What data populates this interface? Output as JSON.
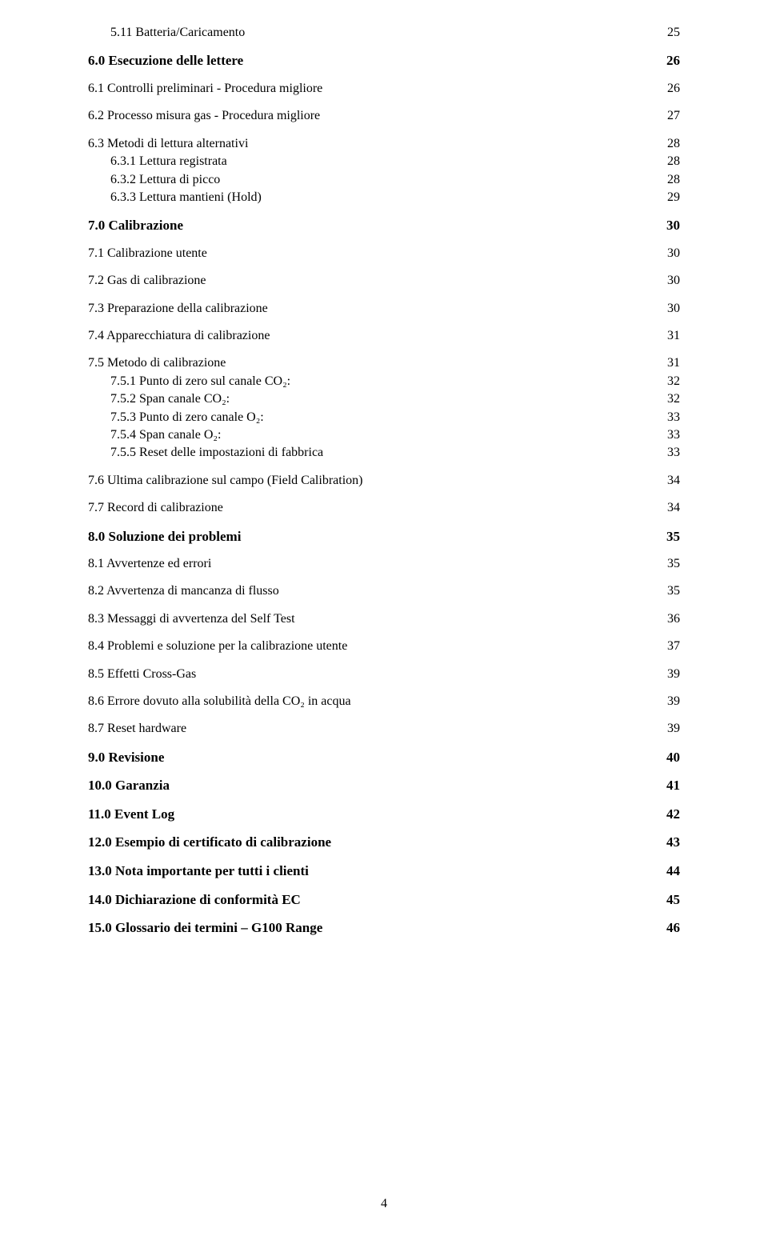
{
  "page_number": "4",
  "text_color": "#000000",
  "background_color": "#ffffff",
  "font_family": "Times New Roman",
  "base_font_size_pt": 12,
  "toc": [
    {
      "level": 2,
      "label": "5.11 Batteria/Caricamento",
      "page": "25",
      "gap_after": "md",
      "font": 16
    },
    {
      "level": 0,
      "label": "6.0  Esecuzione delle lettere",
      "page": "26",
      "gap_after": "md",
      "font": 17
    },
    {
      "level": 1,
      "label": "6.1  Controlli preliminari  -  Procedura migliore",
      "page": "26",
      "gap_after": "md",
      "font": 16
    },
    {
      "level": 1,
      "label": "6.2  Processo misura gas  -  Procedura migliore",
      "page": "27",
      "gap_after": "md",
      "font": 16
    },
    {
      "level": 1,
      "label": "6.3  Metodi di lettura alternativi",
      "page": "28",
      "gap_after": "sm",
      "font": 16
    },
    {
      "level": 2,
      "label": "6.3.1 Lettura registrata",
      "page": "28",
      "gap_after": "sm",
      "font": 16
    },
    {
      "level": 2,
      "label": "6.3.2 Lettura di picco",
      "page": "28",
      "gap_after": "sm",
      "font": 16
    },
    {
      "level": 2,
      "label": "6.3.3 Lettura mantieni (Hold)",
      "page": "29",
      "gap_after": "md",
      "font": 16
    },
    {
      "level": 0,
      "label": "7.0 Calibrazione",
      "page": "30",
      "gap_after": "md",
      "font": 17
    },
    {
      "level": 1,
      "label": "7.1 Calibrazione utente",
      "page": "30",
      "gap_after": "md",
      "font": 16
    },
    {
      "level": 1,
      "label": "7.2 Gas di calibrazione",
      "page": "30",
      "gap_after": "md",
      "font": 16
    },
    {
      "level": 1,
      "label": "7.3 Preparazione della calibrazione",
      "page": "30",
      "gap_after": "md",
      "font": 16
    },
    {
      "level": 1,
      "label": "7.4 Apparecchiatura di calibrazione",
      "page": "31",
      "gap_after": "md",
      "font": 16
    },
    {
      "level": 1,
      "label": "7.5 Metodo di calibrazione",
      "page": "31",
      "gap_after": "sm",
      "font": 16
    },
    {
      "level": 2,
      "label": "7.5.1 Punto di zero sul canale CO₂:",
      "page": "32",
      "gap_after": "sm",
      "font": 16
    },
    {
      "level": 2,
      "label": "7.5.2 Span canale CO₂:",
      "page": "32",
      "gap_after": "sm",
      "font": 16
    },
    {
      "level": 2,
      "label": "7.5.3 Punto di zero canale O₂:",
      "page": "33",
      "gap_after": "sm",
      "font": 16
    },
    {
      "level": 2,
      "label": "7.5.4 Span canale O₂:",
      "page": "33",
      "gap_after": "sm",
      "font": 16
    },
    {
      "level": 2,
      "label": "7.5.5 Reset delle impostazioni di fabbrica",
      "page": "33",
      "gap_after": "md",
      "font": 16
    },
    {
      "level": 1,
      "label": "7.6 Ultima calibrazione sul campo (Field Calibration)",
      "page": "34",
      "gap_after": "md",
      "font": 16
    },
    {
      "level": 1,
      "label": "7.7 Record di calibrazione",
      "page": "34",
      "gap_after": "md",
      "font": 16
    },
    {
      "level": 0,
      "label": "8.0 Soluzione dei problemi",
      "page": "35",
      "gap_after": "md",
      "font": 17
    },
    {
      "level": 1,
      "label": "8.1 Avvertenze ed errori",
      "page": "35",
      "gap_after": "md",
      "font": 16
    },
    {
      "level": 1,
      "label": "8.2 Avvertenza di mancanza di flusso",
      "page": "35",
      "gap_after": "md",
      "font": 16
    },
    {
      "level": 1,
      "label": "8.3 Messaggi di avvertenza del Self Test",
      "page": "36",
      "gap_after": "md",
      "font": 16
    },
    {
      "level": 1,
      "label": "8.4 Problemi e soluzione per la calibrazione utente",
      "page": "37",
      "gap_after": "md",
      "font": 16
    },
    {
      "level": 1,
      "label": "8.5 Effetti Cross-Gas",
      "page": "39",
      "gap_after": "md",
      "font": 16
    },
    {
      "level": 1,
      "label": "8.6 Errore dovuto alla solubilità della CO₂ in acqua",
      "page": "39",
      "gap_after": "md",
      "font": 16
    },
    {
      "level": 1,
      "label": "8.7 Reset hardware",
      "page": "39",
      "gap_after": "md",
      "font": 16
    },
    {
      "level": 0,
      "label": "9.0 Revisione",
      "page": "40",
      "gap_after": "md",
      "font": 17
    },
    {
      "level": 0,
      "label": "10.0 Garanzia",
      "page": "41",
      "gap_after": "md",
      "font": 17
    },
    {
      "level": 0,
      "label": "11.0 Event Log",
      "page": "42",
      "gap_after": "md",
      "font": 17
    },
    {
      "level": 0,
      "label": "12.0 Esempio di certificato di calibrazione",
      "page": "43",
      "gap_after": "md",
      "font": 17
    },
    {
      "level": 0,
      "label": "13.0 Nota importante per tutti i clienti",
      "page": "44",
      "gap_after": "md",
      "font": 17
    },
    {
      "level": 0,
      "label": "14.0 Dichiarazione di conformità EC",
      "page": "45",
      "gap_after": "md",
      "font": 17
    },
    {
      "level": 0,
      "label": "15.0 Glossario dei termini – G100 Range",
      "page": "46",
      "gap_after": "md",
      "font": 17
    }
  ]
}
